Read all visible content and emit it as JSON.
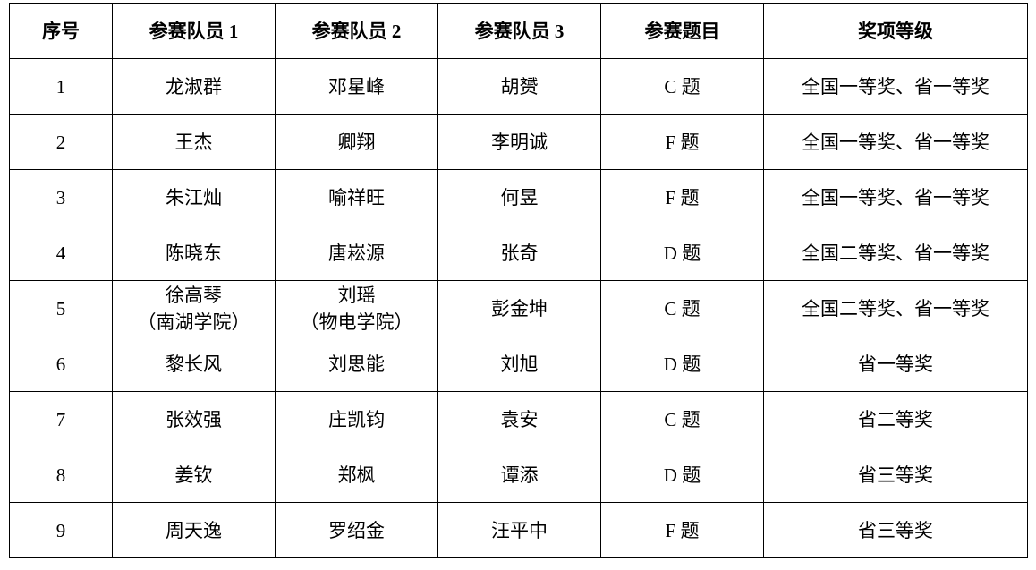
{
  "table": {
    "headers": [
      "序号",
      "参赛队员 1",
      "参赛队员 2",
      "参赛队员 3",
      "参赛题目",
      "奖项等级"
    ],
    "rows": [
      {
        "cells": [
          "1",
          "龙淑群",
          "邓星峰",
          "胡赟",
          "C 题",
          "全国一等奖、省一等奖"
        ]
      },
      {
        "cells": [
          "2",
          "王杰",
          "卿翔",
          "李明诚",
          "F 题",
          "全国一等奖、省一等奖"
        ]
      },
      {
        "cells": [
          "3",
          "朱江灿",
          "喻祥旺",
          "何昱",
          "F 题",
          "全国一等奖、省一等奖"
        ]
      },
      {
        "cells": [
          "4",
          "陈晓东",
          "唐崧源",
          "张奇",
          "D 题",
          "全国二等奖、省一等奖"
        ]
      },
      {
        "cells": [
          "5",
          "徐高琴",
          "刘瑶",
          "彭金坤",
          "C 题",
          "全国二等奖、省一等奖"
        ],
        "notes": [
          "",
          "（南湖学院）",
          "（物电学院）",
          "",
          "",
          ""
        ]
      },
      {
        "cells": [
          "6",
          "黎长风",
          "刘思能",
          "刘旭",
          "D 题",
          "省一等奖"
        ]
      },
      {
        "cells": [
          "7",
          "张效强",
          "庄凯钧",
          "袁安",
          "C 题",
          "省二等奖"
        ]
      },
      {
        "cells": [
          "8",
          "姜钦",
          "郑枫",
          "谭添",
          "D 题",
          "省三等奖"
        ]
      },
      {
        "cells": [
          "9",
          "周天逸",
          "罗绍金",
          "汪平中",
          "F 题",
          "省三等奖"
        ]
      }
    ]
  }
}
